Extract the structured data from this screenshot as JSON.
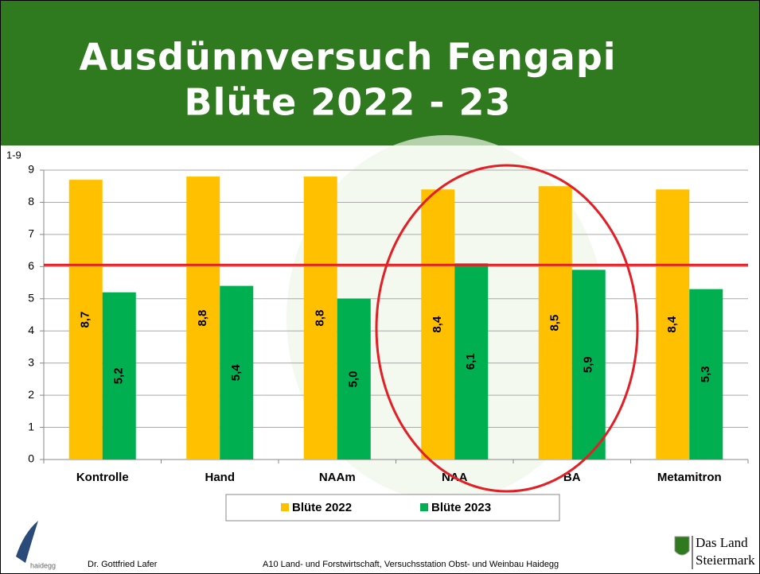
{
  "chart_data": {
    "type": "bar",
    "title": "Ausdünnversuch Fengapi",
    "subtitle": "Blüte 2022 - 23",
    "y_label": "1-9",
    "categories": [
      "Kontrolle",
      "Hand",
      "NAAm",
      "NAA",
      "BA",
      "Metamitron"
    ],
    "series": [
      {
        "name": "Blüte 2022",
        "color": "#ffc000",
        "values": [
          8.7,
          8.8,
          8.8,
          8.4,
          8.5,
          8.4
        ],
        "value_labels": [
          "8,7",
          "8,8",
          "8,8",
          "8,4",
          "8,5",
          "8,4"
        ]
      },
      {
        "name": "Blüte 2023",
        "color": "#00b050",
        "values": [
          5.2,
          5.4,
          5.0,
          6.1,
          5.9,
          5.3
        ],
        "value_labels": [
          "5,2",
          "5,4",
          "5,0",
          "6,1",
          "5,9",
          "5,3"
        ]
      }
    ],
    "reference_line": {
      "value": 6.05,
      "color": "#e31e24"
    },
    "ylim": [
      0,
      9
    ],
    "yticks": [
      0,
      1,
      2,
      3,
      4,
      5,
      6,
      7,
      8,
      9
    ],
    "grid": true
  },
  "footer": {
    "author": "Dr. Gottfried Lafer",
    "institution": "A10 Land- und Forstwirtschaft, Versuchsstation Obst- und Weinbau Haidegg",
    "logo_left": "haidegg",
    "logo_right_1": "Das Land",
    "logo_right_2": "Steiermark"
  }
}
